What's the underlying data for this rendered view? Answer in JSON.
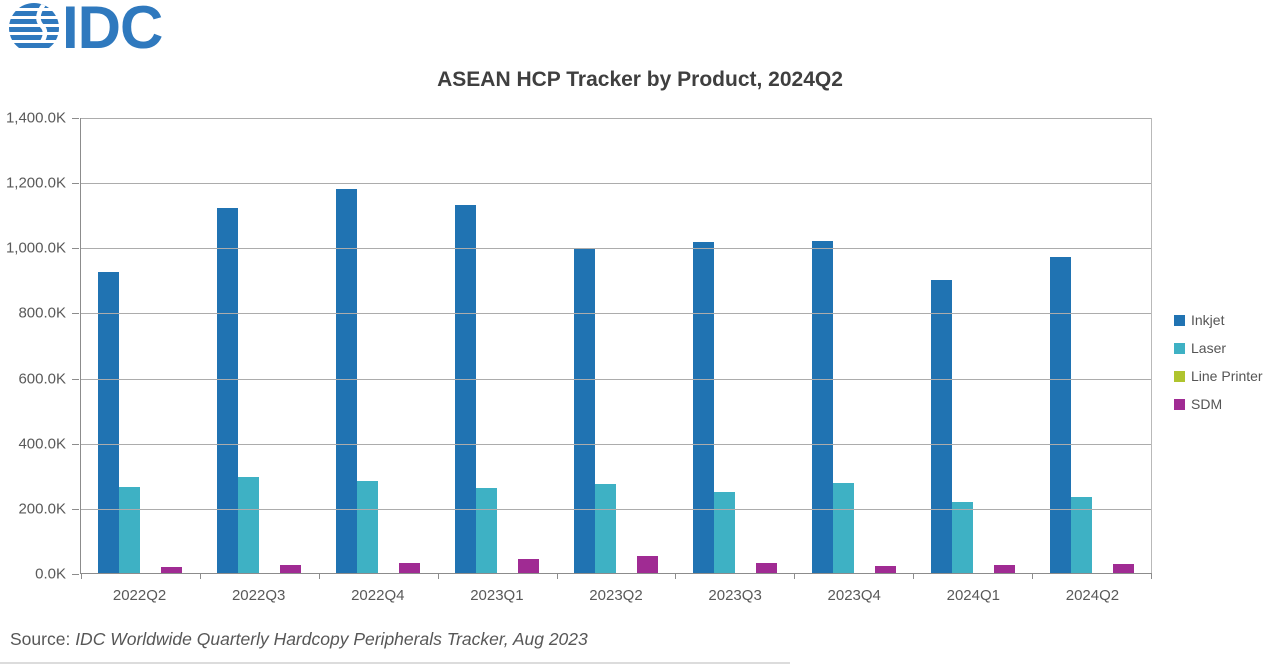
{
  "logo": {
    "text": "IDC",
    "color": "#2F79BE",
    "icon": "striped-globe-icon"
  },
  "title": "ASEAN HCP Tracker by Product, 2024Q2",
  "source": {
    "prefix": "Source: ",
    "citation": "IDC Worldwide Quarterly Hardcopy Peripherals Tracker, Aug 2023"
  },
  "chart_data": {
    "type": "bar",
    "title": "ASEAN HCP Tracker by Product, 2024Q2",
    "unit": "thousands of units (K)",
    "categories": [
      "2022Q2",
      "2022Q3",
      "2022Q4",
      "2023Q1",
      "2023Q2",
      "2023Q3",
      "2023Q4",
      "2024Q1",
      "2024Q2"
    ],
    "series": [
      {
        "name": "Inkjet",
        "color": "#2073B2",
        "values": [
          925,
          1120,
          1180,
          1130,
          995,
          1015,
          1020,
          900,
          970
        ]
      },
      {
        "name": "Laser",
        "color": "#3EB1C4",
        "values": [
          265,
          295,
          282,
          260,
          272,
          250,
          277,
          217,
          233
        ]
      },
      {
        "name": "Line Printer",
        "color": "#AFC42E",
        "values": [
          0,
          0,
          0,
          0,
          0,
          0,
          0,
          0,
          0
        ]
      },
      {
        "name": "SDM",
        "color": "#A02B93",
        "values": [
          18,
          24,
          31,
          42,
          52,
          31,
          23,
          25,
          28
        ]
      }
    ],
    "ylim": [
      0,
      1400
    ],
    "ytick_step": 200,
    "ytick_labels": [
      "0.0K",
      "200.0K",
      "400.0K",
      "600.0K",
      "800.0K",
      "1,000.0K",
      "1,200.0K",
      "1,400.0K"
    ],
    "grid": true,
    "legend_position": "right",
    "legend_entries": [
      "Inkjet",
      "Laser",
      "Line Printer",
      "SDM"
    ]
  }
}
